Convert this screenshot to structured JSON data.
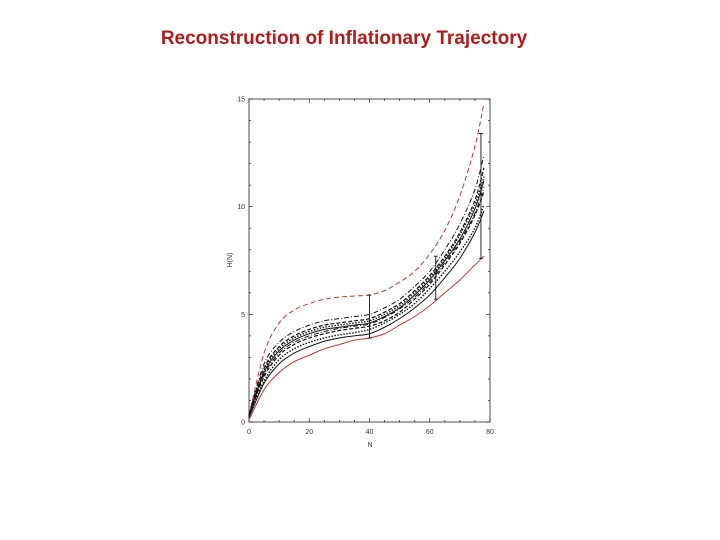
{
  "slide": {
    "title": "Reconstruction of Inflationary Trajectory"
  },
  "colors": {
    "title": "#b01c1c",
    "bound": "#c0392b",
    "ensemble": "#111111",
    "axis": "#222222"
  },
  "chart_data": {
    "type": "line",
    "title": "",
    "xlabel": "N",
    "ylabel": "H(N)",
    "xlim": [
      0,
      80
    ],
    "ylim": [
      0,
      15
    ],
    "x_ticks": [
      "0",
      "20",
      "40",
      "60",
      "80"
    ],
    "y_ticks": [
      "0",
      "5",
      "10",
      "15"
    ],
    "grid": false,
    "series": [
      {
        "style": "red-dashed",
        "x": [
          0,
          5,
          10,
          15,
          20,
          25,
          30,
          35,
          40,
          45,
          50,
          55,
          60,
          65,
          70,
          75,
          78
        ],
        "y": [
          0.3,
          3.2,
          4.6,
          5.2,
          5.5,
          5.7,
          5.8,
          5.85,
          5.9,
          6.1,
          6.5,
          7.0,
          7.8,
          8.9,
          10.5,
          12.8,
          14.8
        ]
      },
      {
        "style": "red-solid",
        "x": [
          0,
          5,
          10,
          15,
          20,
          25,
          30,
          35,
          40,
          45,
          50,
          55,
          60,
          65,
          70,
          75,
          78
        ],
        "y": [
          0.1,
          1.5,
          2.3,
          2.8,
          3.1,
          3.4,
          3.6,
          3.8,
          3.9,
          4.1,
          4.5,
          4.9,
          5.4,
          6.0,
          6.6,
          7.3,
          7.7
        ]
      },
      {
        "style": "black-solid",
        "x": [
          0,
          5,
          10,
          15,
          20,
          25,
          30,
          35,
          40,
          45,
          50,
          55,
          60,
          65,
          70,
          75,
          78
        ],
        "y": [
          0.3,
          2.3,
          3.3,
          3.8,
          4.1,
          4.3,
          4.4,
          4.5,
          4.6,
          4.9,
          5.3,
          5.9,
          6.6,
          7.5,
          8.5,
          9.9,
          11.2
        ]
      },
      {
        "style": "black-dashed",
        "x": [
          0,
          5,
          10,
          15,
          20,
          25,
          30,
          35,
          40,
          45,
          50,
          55,
          60,
          65,
          70,
          75,
          78
        ],
        "y": [
          0.35,
          2.5,
          3.5,
          4.0,
          4.3,
          4.5,
          4.6,
          4.7,
          4.8,
          5.1,
          5.5,
          6.1,
          6.8,
          7.7,
          8.8,
          10.3,
          11.8
        ]
      },
      {
        "style": "black-dashed",
        "x": [
          0,
          5,
          10,
          15,
          20,
          25,
          30,
          35,
          40,
          45,
          50,
          55,
          60,
          65,
          70,
          75,
          78
        ],
        "y": [
          0.3,
          2.1,
          3.1,
          3.6,
          3.9,
          4.1,
          4.25,
          4.35,
          4.45,
          4.7,
          5.1,
          5.7,
          6.4,
          7.3,
          8.3,
          9.6,
          10.7
        ]
      },
      {
        "style": "black-dotted",
        "x": [
          0,
          5,
          10,
          15,
          20,
          25,
          30,
          35,
          40,
          45,
          50,
          55,
          60,
          65,
          70,
          75,
          78
        ],
        "y": [
          0.3,
          2.4,
          3.4,
          3.9,
          4.2,
          4.4,
          4.5,
          4.6,
          4.7,
          5.0,
          5.4,
          6.0,
          6.7,
          7.6,
          8.7,
          10.1,
          11.4
        ]
      },
      {
        "style": "black-dotted",
        "x": [
          0,
          5,
          10,
          15,
          20,
          25,
          30,
          35,
          40,
          45,
          50,
          55,
          60,
          65,
          70,
          75,
          78
        ],
        "y": [
          0.25,
          1.9,
          2.9,
          3.4,
          3.7,
          3.9,
          4.05,
          4.15,
          4.3,
          4.6,
          5.0,
          5.5,
          6.2,
          7.0,
          7.9,
          9.0,
          10.1
        ]
      },
      {
        "style": "black-dashdot",
        "x": [
          0,
          5,
          10,
          15,
          20,
          25,
          30,
          35,
          40,
          45,
          50,
          55,
          60,
          65,
          70,
          75,
          78
        ],
        "y": [
          0.35,
          2.7,
          3.7,
          4.2,
          4.5,
          4.7,
          4.8,
          4.9,
          5.0,
          5.3,
          5.7,
          6.3,
          7.0,
          8.0,
          9.2,
          10.8,
          12.4
        ]
      },
      {
        "style": "black-dashdot",
        "x": [
          0,
          5,
          10,
          15,
          20,
          25,
          30,
          35,
          40,
          45,
          50,
          55,
          60,
          65,
          70,
          75,
          78
        ],
        "y": [
          0.3,
          2.2,
          3.2,
          3.7,
          4.0,
          4.2,
          4.35,
          4.45,
          4.55,
          4.85,
          5.25,
          5.8,
          6.5,
          7.4,
          8.4,
          9.7,
          10.9
        ]
      },
      {
        "style": "black-solid",
        "x": [
          0,
          5,
          10,
          15,
          20,
          25,
          30,
          35,
          40,
          45,
          50,
          55,
          60,
          65,
          70,
          75,
          78
        ],
        "y": [
          0.2,
          1.8,
          2.7,
          3.2,
          3.5,
          3.75,
          3.9,
          4.0,
          4.1,
          4.4,
          4.8,
          5.3,
          5.9,
          6.7,
          7.6,
          8.8,
          9.8
        ]
      }
    ],
    "error_bars": [
      {
        "x": 40,
        "low": 3.9,
        "high": 5.9
      },
      {
        "x": 62,
        "low": 5.7,
        "high": 7.7
      },
      {
        "x": 77,
        "low": 7.6,
        "high": 13.4
      }
    ]
  }
}
